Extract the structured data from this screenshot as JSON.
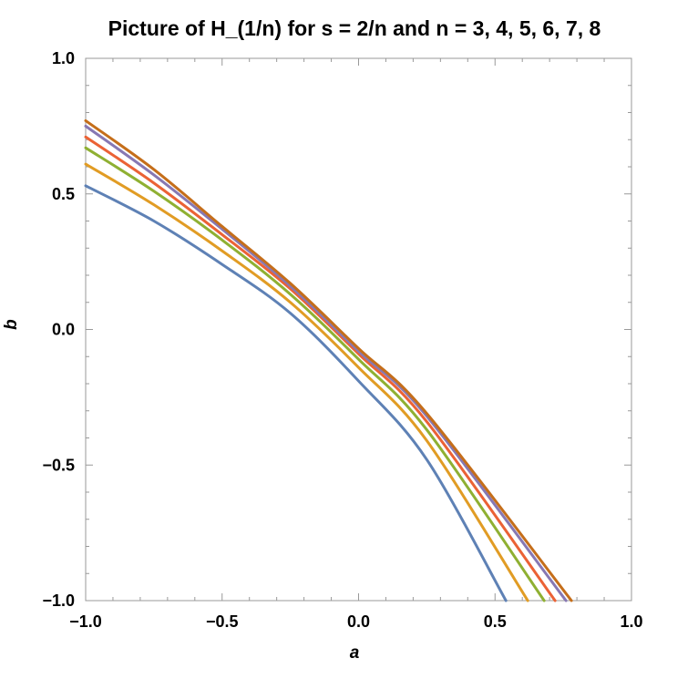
{
  "chart_data": {
    "type": "line",
    "title": "Picture of H_(1/n) for s = 2/n and n = 3, 4, 5, 6, 7, 8",
    "xlabel": "a",
    "ylabel": "b",
    "xlim": [
      -1.0,
      1.0
    ],
    "ylim": [
      -1.0,
      1.0
    ],
    "x_ticks": [
      "−1.0",
      "−0.5",
      "0.0",
      "0.5",
      "1.0"
    ],
    "y_ticks": [
      "−1.0",
      "−0.5",
      "0.0",
      "0.5",
      "1.0"
    ],
    "grid": false,
    "series": [
      {
        "color": "#5E81B5",
        "points": [
          [
            -1.0,
            0.53
          ],
          [
            -0.75,
            0.4
          ],
          [
            -0.5,
            0.24
          ],
          [
            -0.25,
            0.06
          ],
          [
            0.0,
            -0.19
          ],
          [
            0.25,
            -0.48
          ],
          [
            0.54,
            -1.0
          ]
        ]
      },
      {
        "color": "#E19C24",
        "points": [
          [
            -1.0,
            0.61
          ],
          [
            -0.75,
            0.46
          ],
          [
            -0.5,
            0.29
          ],
          [
            -0.25,
            0.1
          ],
          [
            0.0,
            -0.14
          ],
          [
            0.25,
            -0.41
          ],
          [
            0.62,
            -1.0
          ]
        ]
      },
      {
        "color": "#8FB032",
        "points": [
          [
            -1.0,
            0.67
          ],
          [
            -0.75,
            0.51
          ],
          [
            -0.5,
            0.33
          ],
          [
            -0.25,
            0.13
          ],
          [
            0.0,
            -0.11
          ],
          [
            0.25,
            -0.37
          ],
          [
            0.68,
            -1.0
          ]
        ]
      },
      {
        "color": "#EB6235",
        "points": [
          [
            -1.0,
            0.71
          ],
          [
            -0.75,
            0.54
          ],
          [
            -0.5,
            0.35
          ],
          [
            -0.25,
            0.15
          ],
          [
            0.0,
            -0.09
          ],
          [
            0.25,
            -0.34
          ],
          [
            0.72,
            -1.0
          ]
        ]
      },
      {
        "color": "#8778B3",
        "points": [
          [
            -1.0,
            0.75
          ],
          [
            -0.75,
            0.57
          ],
          [
            -0.5,
            0.37
          ],
          [
            -0.25,
            0.16
          ],
          [
            0.0,
            -0.08
          ],
          [
            0.25,
            -0.32
          ],
          [
            0.76,
            -1.0
          ]
        ]
      },
      {
        "color": "#C56E1A",
        "points": [
          [
            -1.0,
            0.77
          ],
          [
            -0.75,
            0.59
          ],
          [
            -0.5,
            0.38
          ],
          [
            -0.25,
            0.17
          ],
          [
            0.0,
            -0.07
          ],
          [
            0.25,
            -0.31
          ],
          [
            0.78,
            -1.0
          ]
        ]
      }
    ]
  }
}
